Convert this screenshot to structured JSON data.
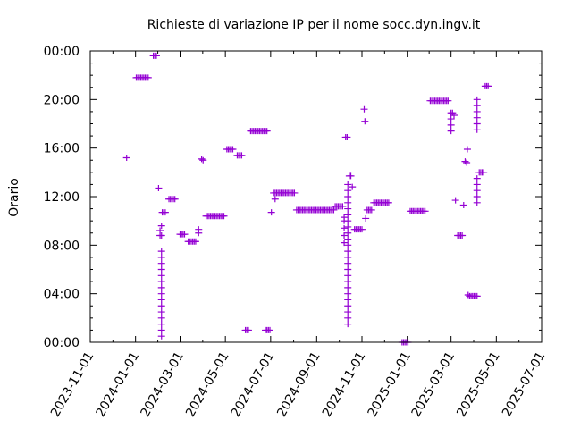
{
  "chart_data": {
    "type": "scatter",
    "title": "Richieste di variazione IP per il nome socc.dyn.ingv.it",
    "xlabel": "",
    "ylabel": "Orario",
    "x_ticks": [
      "2023-11-01",
      "2024-01-01",
      "2024-03-01",
      "2024-05-01",
      "2024-07-01",
      "2024-09-01",
      "2024-11-01",
      "2025-01-01",
      "2025-03-01",
      "2025-05-01",
      "2025-07-01"
    ],
    "xlim": [
      "2023-11-01",
      "2025-07-01"
    ],
    "y_ticks": [
      "00:00",
      "04:00",
      "08:00",
      "12:00",
      "16:00",
      "20:00",
      "00:00"
    ],
    "ylim": [
      0,
      24
    ],
    "grid": false,
    "marker": "+",
    "series_color": "#9400d3",
    "points": [
      [
        "2023-12-20",
        15.2
      ],
      [
        "2024-01-02",
        21.8
      ],
      [
        "2024-01-04",
        21.8
      ],
      [
        "2024-01-06",
        21.8
      ],
      [
        "2024-01-08",
        21.8
      ],
      [
        "2024-01-10",
        21.8
      ],
      [
        "2024-01-12",
        21.8
      ],
      [
        "2024-01-14",
        21.8
      ],
      [
        "2024-01-16",
        21.8
      ],
      [
        "2024-01-18",
        21.8
      ],
      [
        "2024-01-25",
        23.6
      ],
      [
        "2024-01-27",
        23.6
      ],
      [
        "2024-01-29",
        23.6
      ],
      [
        "2024-02-01",
        12.7
      ],
      [
        "2024-02-03",
        9.2
      ],
      [
        "2024-02-03",
        8.8
      ],
      [
        "2024-02-05",
        0.5
      ],
      [
        "2024-02-05",
        1.0
      ],
      [
        "2024-02-05",
        1.5
      ],
      [
        "2024-02-05",
        2.0
      ],
      [
        "2024-02-05",
        2.5
      ],
      [
        "2024-02-05",
        3.0
      ],
      [
        "2024-02-05",
        3.5
      ],
      [
        "2024-02-05",
        4.0
      ],
      [
        "2024-02-05",
        4.5
      ],
      [
        "2024-02-05",
        5.0
      ],
      [
        "2024-02-05",
        5.5
      ],
      [
        "2024-02-05",
        6.0
      ],
      [
        "2024-02-05",
        6.5
      ],
      [
        "2024-02-05",
        7.0
      ],
      [
        "2024-02-05",
        7.5
      ],
      [
        "2024-02-05",
        8.8
      ],
      [
        "2024-02-05",
        9.6
      ],
      [
        "2024-02-06",
        10.7
      ],
      [
        "2024-02-08",
        10.7
      ],
      [
        "2024-02-10",
        10.7
      ],
      [
        "2024-02-15",
        11.8
      ],
      [
        "2024-02-17",
        11.8
      ],
      [
        "2024-02-19",
        11.8
      ],
      [
        "2024-02-21",
        11.8
      ],
      [
        "2024-02-23",
        11.8
      ],
      [
        "2024-03-01",
        8.9
      ],
      [
        "2024-03-03",
        8.9
      ],
      [
        "2024-03-05",
        8.9
      ],
      [
        "2024-03-07",
        8.9
      ],
      [
        "2024-03-12",
        8.3
      ],
      [
        "2024-03-14",
        8.3
      ],
      [
        "2024-03-16",
        8.3
      ],
      [
        "2024-03-18",
        8.3
      ],
      [
        "2024-03-20",
        8.3
      ],
      [
        "2024-03-22",
        8.3
      ],
      [
        "2024-03-26",
        9.3
      ],
      [
        "2024-03-26",
        9.0
      ],
      [
        "2024-03-30",
        15.1
      ],
      [
        "2024-04-01",
        15.0
      ],
      [
        "2024-04-05",
        10.4
      ],
      [
        "2024-04-07",
        10.4
      ],
      [
        "2024-04-09",
        10.4
      ],
      [
        "2024-04-11",
        10.4
      ],
      [
        "2024-04-13",
        10.4
      ],
      [
        "2024-04-15",
        10.4
      ],
      [
        "2024-04-17",
        10.4
      ],
      [
        "2024-04-19",
        10.4
      ],
      [
        "2024-04-21",
        10.4
      ],
      [
        "2024-04-23",
        10.4
      ],
      [
        "2024-04-25",
        10.4
      ],
      [
        "2024-04-27",
        10.4
      ],
      [
        "2024-04-29",
        10.4
      ],
      [
        "2024-05-03",
        15.9
      ],
      [
        "2024-05-05",
        15.9
      ],
      [
        "2024-05-07",
        15.9
      ],
      [
        "2024-05-09",
        15.9
      ],
      [
        "2024-05-11",
        15.9
      ],
      [
        "2024-05-17",
        15.4
      ],
      [
        "2024-05-19",
        15.4
      ],
      [
        "2024-05-21",
        15.4
      ],
      [
        "2024-05-23",
        15.4
      ],
      [
        "2024-05-28",
        1.0
      ],
      [
        "2024-05-30",
        1.0
      ],
      [
        "2024-06-01",
        1.0
      ],
      [
        "2024-06-04",
        17.4
      ],
      [
        "2024-06-06",
        17.4
      ],
      [
        "2024-06-08",
        17.4
      ],
      [
        "2024-06-10",
        17.4
      ],
      [
        "2024-06-12",
        17.4
      ],
      [
        "2024-06-14",
        17.4
      ],
      [
        "2024-06-16",
        17.4
      ],
      [
        "2024-06-18",
        17.4
      ],
      [
        "2024-06-20",
        17.4
      ],
      [
        "2024-06-22",
        17.4
      ],
      [
        "2024-06-24",
        17.4
      ],
      [
        "2024-06-26",
        17.4
      ],
      [
        "2024-06-24",
        1.0
      ],
      [
        "2024-06-26",
        1.0
      ],
      [
        "2024-06-28",
        1.0
      ],
      [
        "2024-06-30",
        1.0
      ],
      [
        "2024-07-02",
        10.7
      ],
      [
        "2024-07-05",
        12.3
      ],
      [
        "2024-07-07",
        12.3
      ],
      [
        "2024-07-09",
        12.3
      ],
      [
        "2024-07-11",
        12.3
      ],
      [
        "2024-07-13",
        12.3
      ],
      [
        "2024-07-15",
        12.3
      ],
      [
        "2024-07-17",
        12.3
      ],
      [
        "2024-07-19",
        12.3
      ],
      [
        "2024-07-21",
        12.3
      ],
      [
        "2024-07-23",
        12.3
      ],
      [
        "2024-07-25",
        12.3
      ],
      [
        "2024-07-27",
        12.3
      ],
      [
        "2024-07-29",
        12.3
      ],
      [
        "2024-07-31",
        12.3
      ],
      [
        "2024-08-02",
        12.3
      ],
      [
        "2024-07-07",
        11.8
      ],
      [
        "2024-08-05",
        10.9
      ],
      [
        "2024-08-07",
        10.9
      ],
      [
        "2024-08-09",
        10.9
      ],
      [
        "2024-08-11",
        10.9
      ],
      [
        "2024-08-13",
        10.9
      ],
      [
        "2024-08-15",
        10.9
      ],
      [
        "2024-08-17",
        10.9
      ],
      [
        "2024-08-19",
        10.9
      ],
      [
        "2024-08-21",
        10.9
      ],
      [
        "2024-08-23",
        10.9
      ],
      [
        "2024-08-25",
        10.9
      ],
      [
        "2024-08-27",
        10.9
      ],
      [
        "2024-08-29",
        10.9
      ],
      [
        "2024-08-31",
        10.9
      ],
      [
        "2024-09-02",
        10.9
      ],
      [
        "2024-09-04",
        10.9
      ],
      [
        "2024-09-06",
        10.9
      ],
      [
        "2024-09-08",
        10.9
      ],
      [
        "2024-09-10",
        10.9
      ],
      [
        "2024-09-12",
        10.9
      ],
      [
        "2024-09-14",
        10.9
      ],
      [
        "2024-09-16",
        10.9
      ],
      [
        "2024-09-18",
        10.9
      ],
      [
        "2024-09-20",
        10.9
      ],
      [
        "2024-09-22",
        10.9
      ],
      [
        "2024-09-24",
        10.9
      ],
      [
        "2024-09-26",
        11.2
      ],
      [
        "2024-09-28",
        11.2
      ],
      [
        "2024-09-30",
        11.2
      ],
      [
        "2024-10-02",
        11.2
      ],
      [
        "2024-10-04",
        11.2
      ],
      [
        "2024-10-06",
        11.2
      ],
      [
        "2024-10-08",
        8.2
      ],
      [
        "2024-10-08",
        8.8
      ],
      [
        "2024-10-08",
        9.4
      ],
      [
        "2024-10-08",
        10.0
      ],
      [
        "2024-10-08",
        10.3
      ],
      [
        "2024-10-10",
        16.9
      ],
      [
        "2024-10-12",
        16.9
      ],
      [
        "2024-10-13",
        1.5
      ],
      [
        "2024-10-13",
        2.0
      ],
      [
        "2024-10-13",
        2.5
      ],
      [
        "2024-10-13",
        3.0
      ],
      [
        "2024-10-13",
        3.5
      ],
      [
        "2024-10-13",
        4.0
      ],
      [
        "2024-10-13",
        4.5
      ],
      [
        "2024-10-13",
        5.0
      ],
      [
        "2024-10-13",
        5.5
      ],
      [
        "2024-10-13",
        6.0
      ],
      [
        "2024-10-13",
        6.5
      ],
      [
        "2024-10-13",
        7.0
      ],
      [
        "2024-10-13",
        7.5
      ],
      [
        "2024-10-13",
        8.0
      ],
      [
        "2024-10-13",
        8.5
      ],
      [
        "2024-10-13",
        9.0
      ],
      [
        "2024-10-13",
        9.5
      ],
      [
        "2024-10-13",
        10.0
      ],
      [
        "2024-10-13",
        10.5
      ],
      [
        "2024-10-13",
        11.0
      ],
      [
        "2024-10-13",
        11.5
      ],
      [
        "2024-10-13",
        12.0
      ],
      [
        "2024-10-13",
        12.5
      ],
      [
        "2024-10-13",
        13.0
      ],
      [
        "2024-10-15",
        13.7
      ],
      [
        "2024-10-17",
        13.7
      ],
      [
        "2024-10-19",
        12.8
      ],
      [
        "2024-10-22",
        9.3
      ],
      [
        "2024-10-24",
        9.3
      ],
      [
        "2024-10-26",
        9.3
      ],
      [
        "2024-10-28",
        9.3
      ],
      [
        "2024-10-30",
        9.3
      ],
      [
        "2024-11-01",
        9.3
      ],
      [
        "2024-11-04",
        19.2
      ],
      [
        "2024-11-05",
        18.2
      ],
      [
        "2024-11-06",
        10.2
      ],
      [
        "2024-11-08",
        10.9
      ],
      [
        "2024-11-10",
        10.9
      ],
      [
        "2024-11-12",
        10.9
      ],
      [
        "2024-11-14",
        10.9
      ],
      [
        "2024-11-17",
        11.5
      ],
      [
        "2024-11-19",
        11.5
      ],
      [
        "2024-11-21",
        11.5
      ],
      [
        "2024-11-23",
        11.5
      ],
      [
        "2024-11-25",
        11.5
      ],
      [
        "2024-11-27",
        11.5
      ],
      [
        "2024-11-29",
        11.5
      ],
      [
        "2024-12-01",
        11.5
      ],
      [
        "2024-12-03",
        11.5
      ],
      [
        "2024-12-05",
        11.5
      ],
      [
        "2024-12-07",
        11.5
      ],
      [
        "2024-12-25",
        0.0
      ],
      [
        "2024-12-27",
        0.0
      ],
      [
        "2024-12-29",
        0.0
      ],
      [
        "2024-12-31",
        0.0
      ],
      [
        "2025-01-02",
        0.0
      ],
      [
        "2025-01-05",
        10.8
      ],
      [
        "2025-01-07",
        10.8
      ],
      [
        "2025-01-09",
        10.8
      ],
      [
        "2025-01-11",
        10.8
      ],
      [
        "2025-01-13",
        10.8
      ],
      [
        "2025-01-15",
        10.8
      ],
      [
        "2025-01-17",
        10.8
      ],
      [
        "2025-01-19",
        10.8
      ],
      [
        "2025-01-21",
        10.8
      ],
      [
        "2025-01-23",
        10.8
      ],
      [
        "2025-01-25",
        10.8
      ],
      [
        "2025-02-01",
        19.9
      ],
      [
        "2025-02-03",
        19.9
      ],
      [
        "2025-02-05",
        19.9
      ],
      [
        "2025-02-07",
        19.9
      ],
      [
        "2025-02-09",
        19.9
      ],
      [
        "2025-02-11",
        19.9
      ],
      [
        "2025-02-13",
        19.9
      ],
      [
        "2025-02-15",
        19.9
      ],
      [
        "2025-02-17",
        19.9
      ],
      [
        "2025-02-19",
        19.9
      ],
      [
        "2025-02-21",
        19.9
      ],
      [
        "2025-02-23",
        19.9
      ],
      [
        "2025-02-25",
        19.9
      ],
      [
        "2025-03-01",
        18.9
      ],
      [
        "2025-03-01",
        18.4
      ],
      [
        "2025-03-01",
        17.9
      ],
      [
        "2025-03-01",
        17.4
      ],
      [
        "2025-03-03",
        18.9
      ],
      [
        "2025-03-05",
        18.7
      ],
      [
        "2025-03-07",
        11.7
      ],
      [
        "2025-03-10",
        8.8
      ],
      [
        "2025-03-12",
        8.8
      ],
      [
        "2025-03-14",
        8.8
      ],
      [
        "2025-03-16",
        8.8
      ],
      [
        "2025-03-18",
        11.3
      ],
      [
        "2025-03-20",
        14.9
      ],
      [
        "2025-03-22",
        14.8
      ],
      [
        "2025-03-23",
        15.9
      ],
      [
        "2025-03-24",
        3.9
      ],
      [
        "2025-03-26",
        3.8
      ],
      [
        "2025-03-28",
        3.8
      ],
      [
        "2025-03-30",
        3.8
      ],
      [
        "2025-04-01",
        3.8
      ],
      [
        "2025-04-03",
        3.8
      ],
      [
        "2025-04-05",
        3.8
      ],
      [
        "2025-04-05",
        11.5
      ],
      [
        "2025-04-05",
        12.0
      ],
      [
        "2025-04-05",
        12.5
      ],
      [
        "2025-04-05",
        13.0
      ],
      [
        "2025-04-05",
        13.5
      ],
      [
        "2025-04-05",
        17.5
      ],
      [
        "2025-04-05",
        18.0
      ],
      [
        "2025-04-05",
        18.5
      ],
      [
        "2025-04-05",
        19.0
      ],
      [
        "2025-04-05",
        19.5
      ],
      [
        "2025-04-05",
        20.0
      ],
      [
        "2025-04-08",
        14.0
      ],
      [
        "2025-04-10",
        14.0
      ],
      [
        "2025-04-12",
        14.0
      ],
      [
        "2025-04-14",
        14.0
      ],
      [
        "2025-04-16",
        21.1
      ],
      [
        "2025-04-18",
        21.1
      ],
      [
        "2025-04-20",
        21.1
      ]
    ]
  }
}
